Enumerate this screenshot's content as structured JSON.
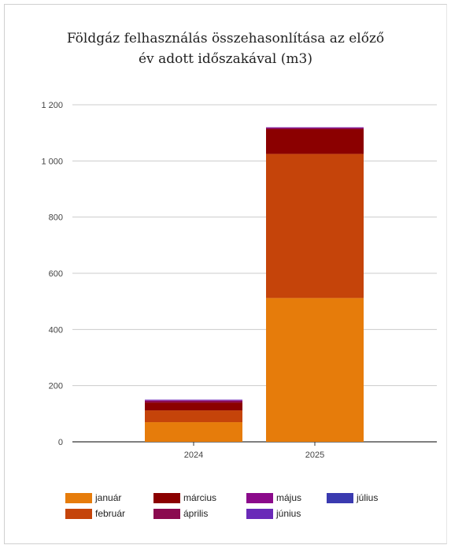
{
  "chart_data": {
    "type": "bar",
    "stacked": true,
    "title_lines": [
      "Földgáz felhasználás összehasonlítása az előző",
      "év adott időszakával (m3)"
    ],
    "categories": [
      "2024",
      "2025"
    ],
    "ylim": [
      0,
      1200
    ],
    "yticks": [
      0,
      200,
      400,
      600,
      800,
      1000,
      1200
    ],
    "ytick_labels": [
      "0",
      "200",
      "400",
      "600",
      "800",
      "1 000",
      "1 200"
    ],
    "grid": true,
    "legend_position": "bottom",
    "series": [
      {
        "name": "január",
        "color": "#E67C0B",
        "values": [
          70,
          512
        ]
      },
      {
        "name": "február",
        "color": "#C5440A",
        "values": [
          42,
          513
        ]
      },
      {
        "name": "március",
        "color": "#8B0000",
        "values": [
          28,
          88
        ]
      },
      {
        "name": "április",
        "color": "#8B0A50",
        "values": [
          6,
          4
        ]
      },
      {
        "name": "május",
        "color": "#8B0A8B",
        "values": [
          2,
          2
        ]
      },
      {
        "name": "június",
        "color": "#6A2AB8",
        "values": [
          2,
          1
        ]
      },
      {
        "name": "július",
        "color": "#3A3AB0",
        "values": [
          0,
          0
        ]
      }
    ]
  }
}
